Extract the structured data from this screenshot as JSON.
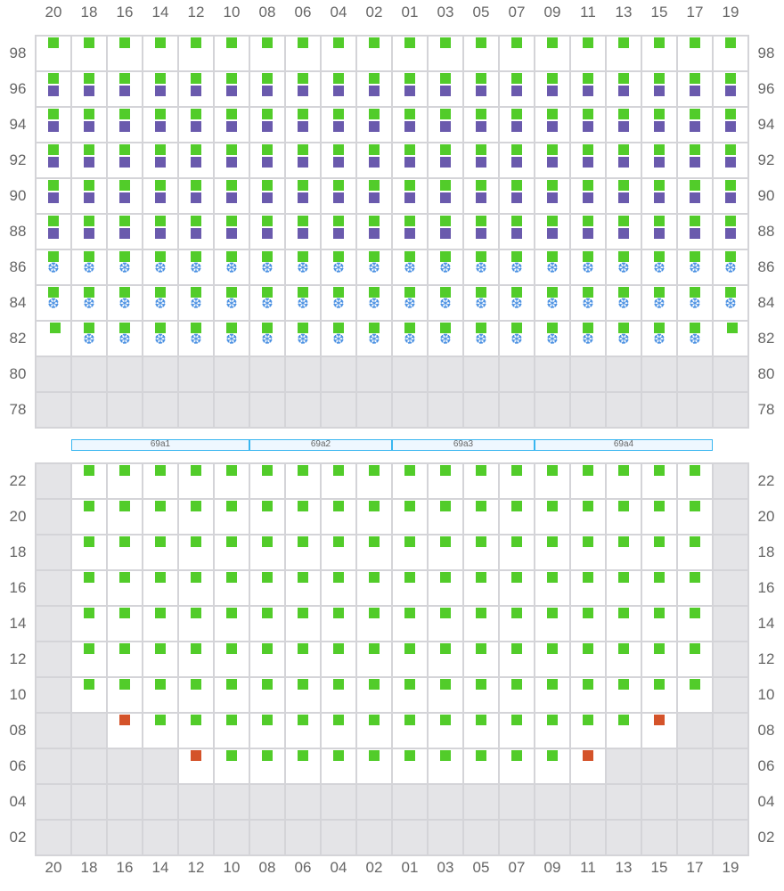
{
  "columns": [
    "20",
    "18",
    "16",
    "14",
    "12",
    "10",
    "08",
    "06",
    "04",
    "02",
    "01",
    "03",
    "05",
    "07",
    "09",
    "11",
    "13",
    "15",
    "17",
    "19"
  ],
  "colors": {
    "ok": "#52cc2a",
    "secondary": "#6a5aad",
    "alert": "#d4532a",
    "cold": "#4a90e2",
    "disabled": "#e4e4e7"
  },
  "legend_codes": {
    "g": "green square",
    "gp": "green + purple square",
    "gs": "green square + snowflake-icon",
    "go": "green square (offset)",
    "r": "red square",
    "x": "disabled",
    "e": "empty"
  },
  "top_section": {
    "rows": [
      {
        "label": "98",
        "cells": [
          "g",
          "g",
          "g",
          "g",
          "g",
          "g",
          "g",
          "g",
          "g",
          "g",
          "g",
          "g",
          "g",
          "g",
          "g",
          "g",
          "g",
          "g",
          "g",
          "g"
        ]
      },
      {
        "label": "96",
        "cells": [
          "gp",
          "gp",
          "gp",
          "gp",
          "gp",
          "gp",
          "gp",
          "gp",
          "gp",
          "gp",
          "gp",
          "gp",
          "gp",
          "gp",
          "gp",
          "gp",
          "gp",
          "gp",
          "gp",
          "gp"
        ]
      },
      {
        "label": "94",
        "cells": [
          "gp",
          "gp",
          "gp",
          "gp",
          "gp",
          "gp",
          "gp",
          "gp",
          "gp",
          "gp",
          "gp",
          "gp",
          "gp",
          "gp",
          "gp",
          "gp",
          "gp",
          "gp",
          "gp",
          "gp"
        ]
      },
      {
        "label": "92",
        "cells": [
          "gp",
          "gp",
          "gp",
          "gp",
          "gp",
          "gp",
          "gp",
          "gp",
          "gp",
          "gp",
          "gp",
          "gp",
          "gp",
          "gp",
          "gp",
          "gp",
          "gp",
          "gp",
          "gp",
          "gp"
        ]
      },
      {
        "label": "90",
        "cells": [
          "gp",
          "gp",
          "gp",
          "gp",
          "gp",
          "gp",
          "gp",
          "gp",
          "gp",
          "gp",
          "gp",
          "gp",
          "gp",
          "gp",
          "gp",
          "gp",
          "gp",
          "gp",
          "gp",
          "gp"
        ]
      },
      {
        "label": "88",
        "cells": [
          "gp",
          "gp",
          "gp",
          "gp",
          "gp",
          "gp",
          "gp",
          "gp",
          "gp",
          "gp",
          "gp",
          "gp",
          "gp",
          "gp",
          "gp",
          "gp",
          "gp",
          "gp",
          "gp",
          "gp"
        ]
      },
      {
        "label": "86",
        "cells": [
          "gs",
          "gs",
          "gs",
          "gs",
          "gs",
          "gs",
          "gs",
          "gs",
          "gs",
          "gs",
          "gs",
          "gs",
          "gs",
          "gs",
          "gs",
          "gs",
          "gs",
          "gs",
          "gs",
          "gs"
        ]
      },
      {
        "label": "84",
        "cells": [
          "gs",
          "gs",
          "gs",
          "gs",
          "gs",
          "gs",
          "gs",
          "gs",
          "gs",
          "gs",
          "gs",
          "gs",
          "gs",
          "gs",
          "gs",
          "gs",
          "gs",
          "gs",
          "gs",
          "gs"
        ]
      },
      {
        "label": "82",
        "cells": [
          "go",
          "gs",
          "gs",
          "gs",
          "gs",
          "gs",
          "gs",
          "gs",
          "gs",
          "gs",
          "gs",
          "gs",
          "gs",
          "gs",
          "gs",
          "gs",
          "gs",
          "gs",
          "gs",
          "go"
        ]
      },
      {
        "label": "80",
        "cells": [
          "x",
          "x",
          "x",
          "x",
          "x",
          "x",
          "x",
          "x",
          "x",
          "x",
          "x",
          "x",
          "x",
          "x",
          "x",
          "x",
          "x",
          "x",
          "x",
          "x"
        ]
      },
      {
        "label": "78",
        "cells": [
          "x",
          "x",
          "x",
          "x",
          "x",
          "x",
          "x",
          "x",
          "x",
          "x",
          "x",
          "x",
          "x",
          "x",
          "x",
          "x",
          "x",
          "x",
          "x",
          "x"
        ]
      }
    ]
  },
  "segments": [
    {
      "label": "69a1",
      "start_col": 1,
      "span": 5
    },
    {
      "label": "69a2",
      "start_col": 6,
      "span": 4
    },
    {
      "label": "69a3",
      "start_col": 10,
      "span": 4
    },
    {
      "label": "69a4",
      "start_col": 14,
      "span": 5
    }
  ],
  "bottom_section": {
    "rows": [
      {
        "label": "22",
        "cells": [
          "x",
          "g",
          "g",
          "g",
          "g",
          "g",
          "g",
          "g",
          "g",
          "g",
          "g",
          "g",
          "g",
          "g",
          "g",
          "g",
          "g",
          "g",
          "g",
          "x"
        ]
      },
      {
        "label": "20",
        "cells": [
          "x",
          "g",
          "g",
          "g",
          "g",
          "g",
          "g",
          "g",
          "g",
          "g",
          "g",
          "g",
          "g",
          "g",
          "g",
          "g",
          "g",
          "g",
          "g",
          "x"
        ]
      },
      {
        "label": "18",
        "cells": [
          "x",
          "g",
          "g",
          "g",
          "g",
          "g",
          "g",
          "g",
          "g",
          "g",
          "g",
          "g",
          "g",
          "g",
          "g",
          "g",
          "g",
          "g",
          "g",
          "x"
        ]
      },
      {
        "label": "16",
        "cells": [
          "x",
          "g",
          "g",
          "g",
          "g",
          "g",
          "g",
          "g",
          "g",
          "g",
          "g",
          "g",
          "g",
          "g",
          "g",
          "g",
          "g",
          "g",
          "g",
          "x"
        ]
      },
      {
        "label": "14",
        "cells": [
          "x",
          "g",
          "g",
          "g",
          "g",
          "g",
          "g",
          "g",
          "g",
          "g",
          "g",
          "g",
          "g",
          "g",
          "g",
          "g",
          "g",
          "g",
          "g",
          "x"
        ]
      },
      {
        "label": "12",
        "cells": [
          "x",
          "g",
          "g",
          "g",
          "g",
          "g",
          "g",
          "g",
          "g",
          "g",
          "g",
          "g",
          "g",
          "g",
          "g",
          "g",
          "g",
          "g",
          "g",
          "x"
        ]
      },
      {
        "label": "10",
        "cells": [
          "x",
          "g",
          "g",
          "g",
          "g",
          "g",
          "g",
          "g",
          "g",
          "g",
          "g",
          "g",
          "g",
          "g",
          "g",
          "g",
          "g",
          "g",
          "g",
          "x"
        ]
      },
      {
        "label": "08",
        "cells": [
          "x",
          "x",
          "r",
          "g",
          "g",
          "g",
          "g",
          "g",
          "g",
          "g",
          "g",
          "g",
          "g",
          "g",
          "g",
          "g",
          "g",
          "r",
          "x",
          "x"
        ]
      },
      {
        "label": "06",
        "cells": [
          "x",
          "x",
          "x",
          "x",
          "r",
          "g",
          "g",
          "g",
          "g",
          "g",
          "g",
          "g",
          "g",
          "g",
          "g",
          "r",
          "x",
          "x",
          "x",
          "x"
        ]
      },
      {
        "label": "04",
        "cells": [
          "x",
          "x",
          "x",
          "x",
          "x",
          "x",
          "x",
          "x",
          "x",
          "x",
          "x",
          "x",
          "x",
          "x",
          "x",
          "x",
          "x",
          "x",
          "x",
          "x"
        ]
      },
      {
        "label": "02",
        "cells": [
          "x",
          "x",
          "x",
          "x",
          "x",
          "x",
          "x",
          "x",
          "x",
          "x",
          "x",
          "x",
          "x",
          "x",
          "x",
          "x",
          "x",
          "x",
          "x",
          "x"
        ]
      }
    ]
  }
}
